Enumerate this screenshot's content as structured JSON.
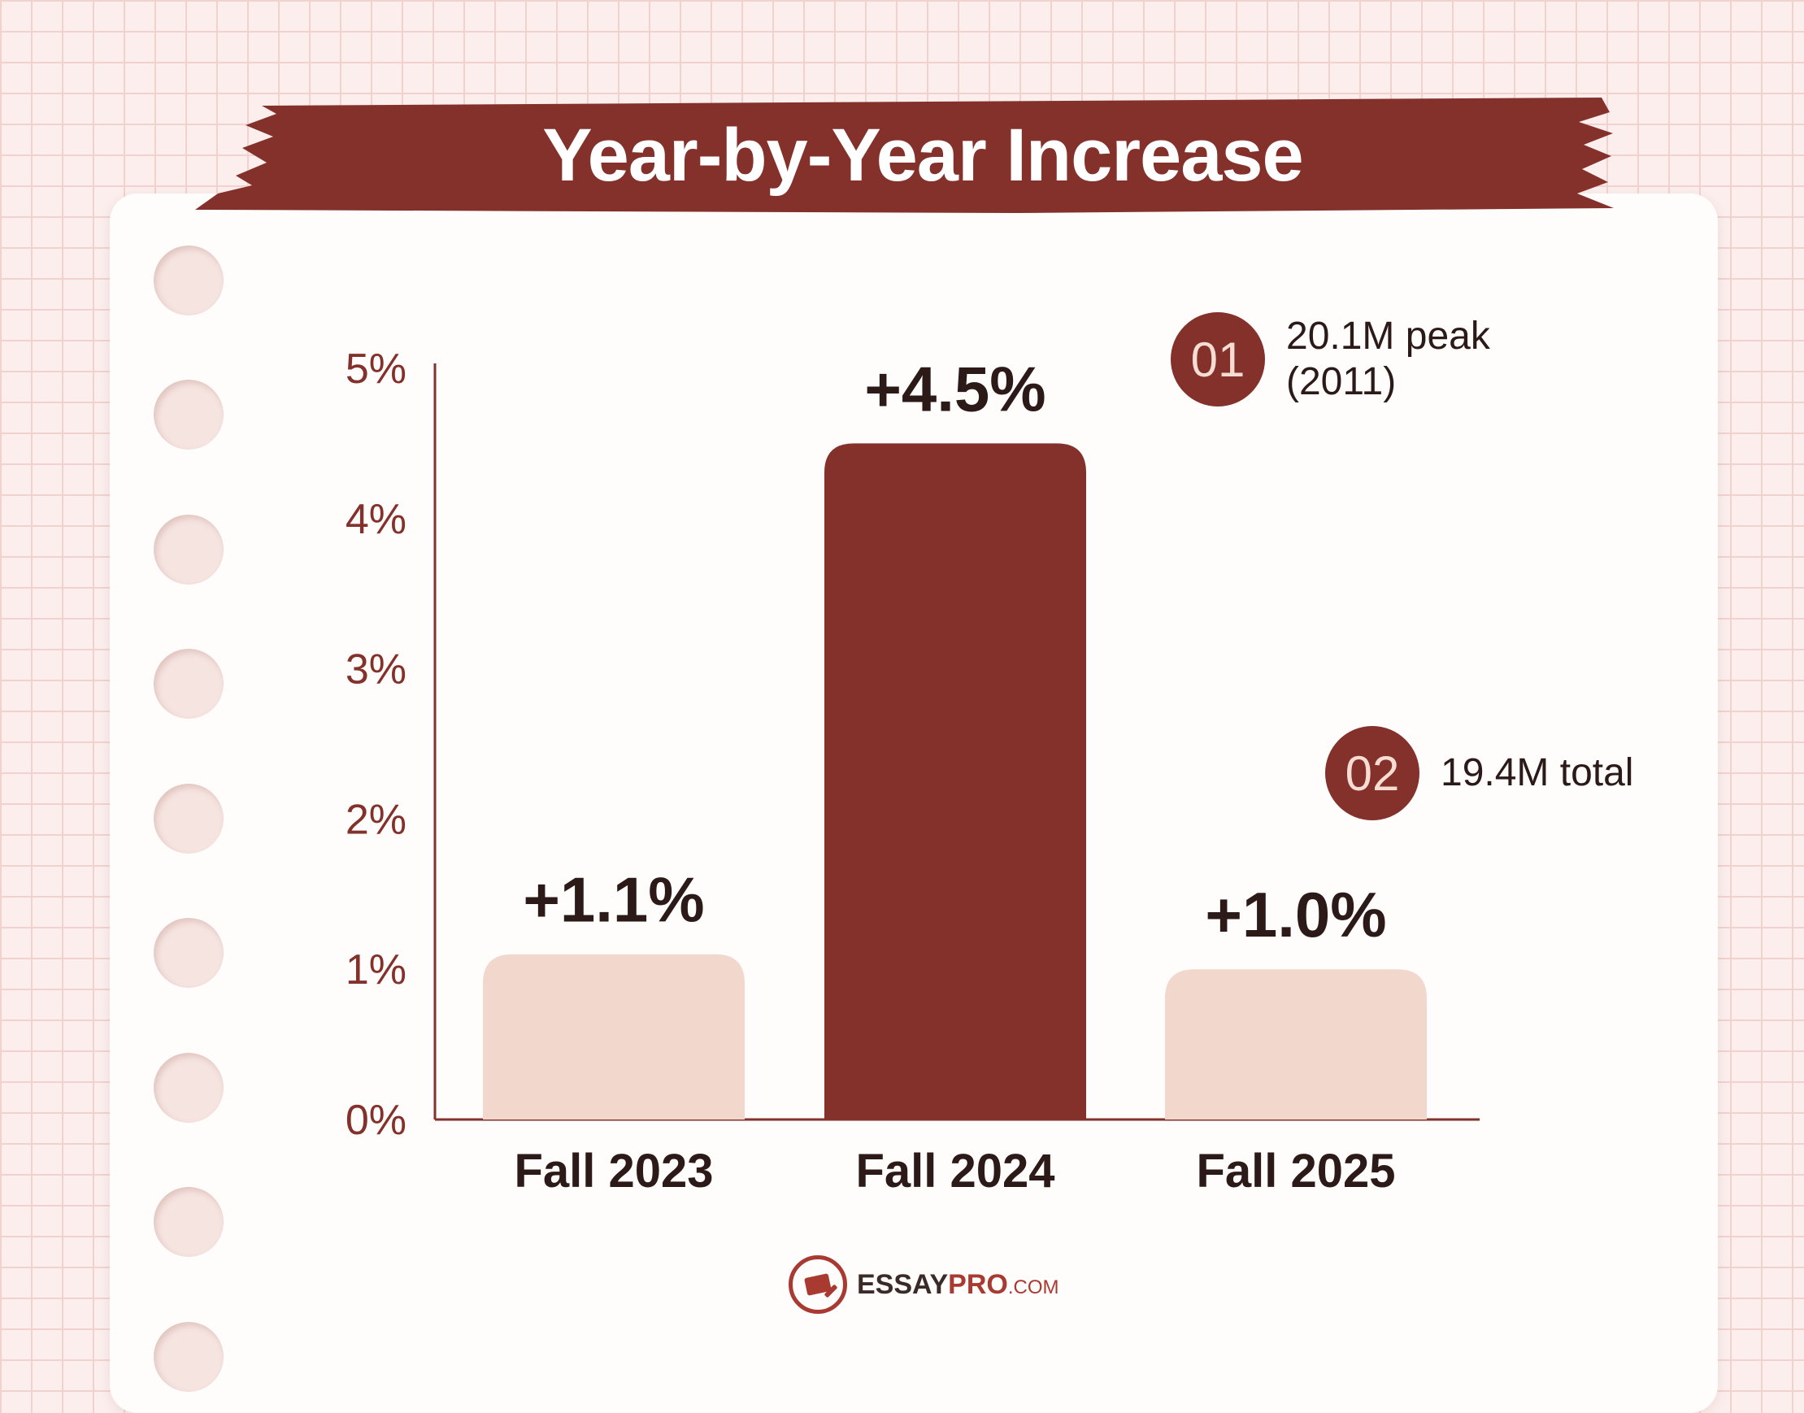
{
  "title": "Year-by-Year Increase",
  "colors": {
    "accent": "#83312a",
    "bar_light": "#f2d8cc",
    "axis_text": "#83312a",
    "label_text": "#2b1a18"
  },
  "callouts": [
    {
      "number": "01",
      "text": "20.1M peak\n(2011)"
    },
    {
      "number": "02",
      "text": "19.4M total"
    }
  ],
  "brand": {
    "name": "ESSAY",
    "name_accent": "PRO",
    "domain": ".COM",
    "icon": "document-pen-icon"
  },
  "chart_data": {
    "type": "bar",
    "title": "Year-by-Year Increase",
    "categories": [
      "Fall 2023",
      "Fall 2024",
      "Fall 2025"
    ],
    "values": [
      1.1,
      4.5,
      1.0
    ],
    "value_labels": [
      "+1.1%",
      "+4.5%",
      "+1.0%"
    ],
    "highlight_index": 1,
    "ylim": [
      0,
      5
    ],
    "yticks": [
      0,
      1,
      2,
      3,
      4,
      5
    ],
    "ytick_labels": [
      "0%",
      "1%",
      "2%",
      "3%",
      "4%",
      "5%"
    ],
    "xlabel": "",
    "ylabel": "",
    "grid": false
  }
}
